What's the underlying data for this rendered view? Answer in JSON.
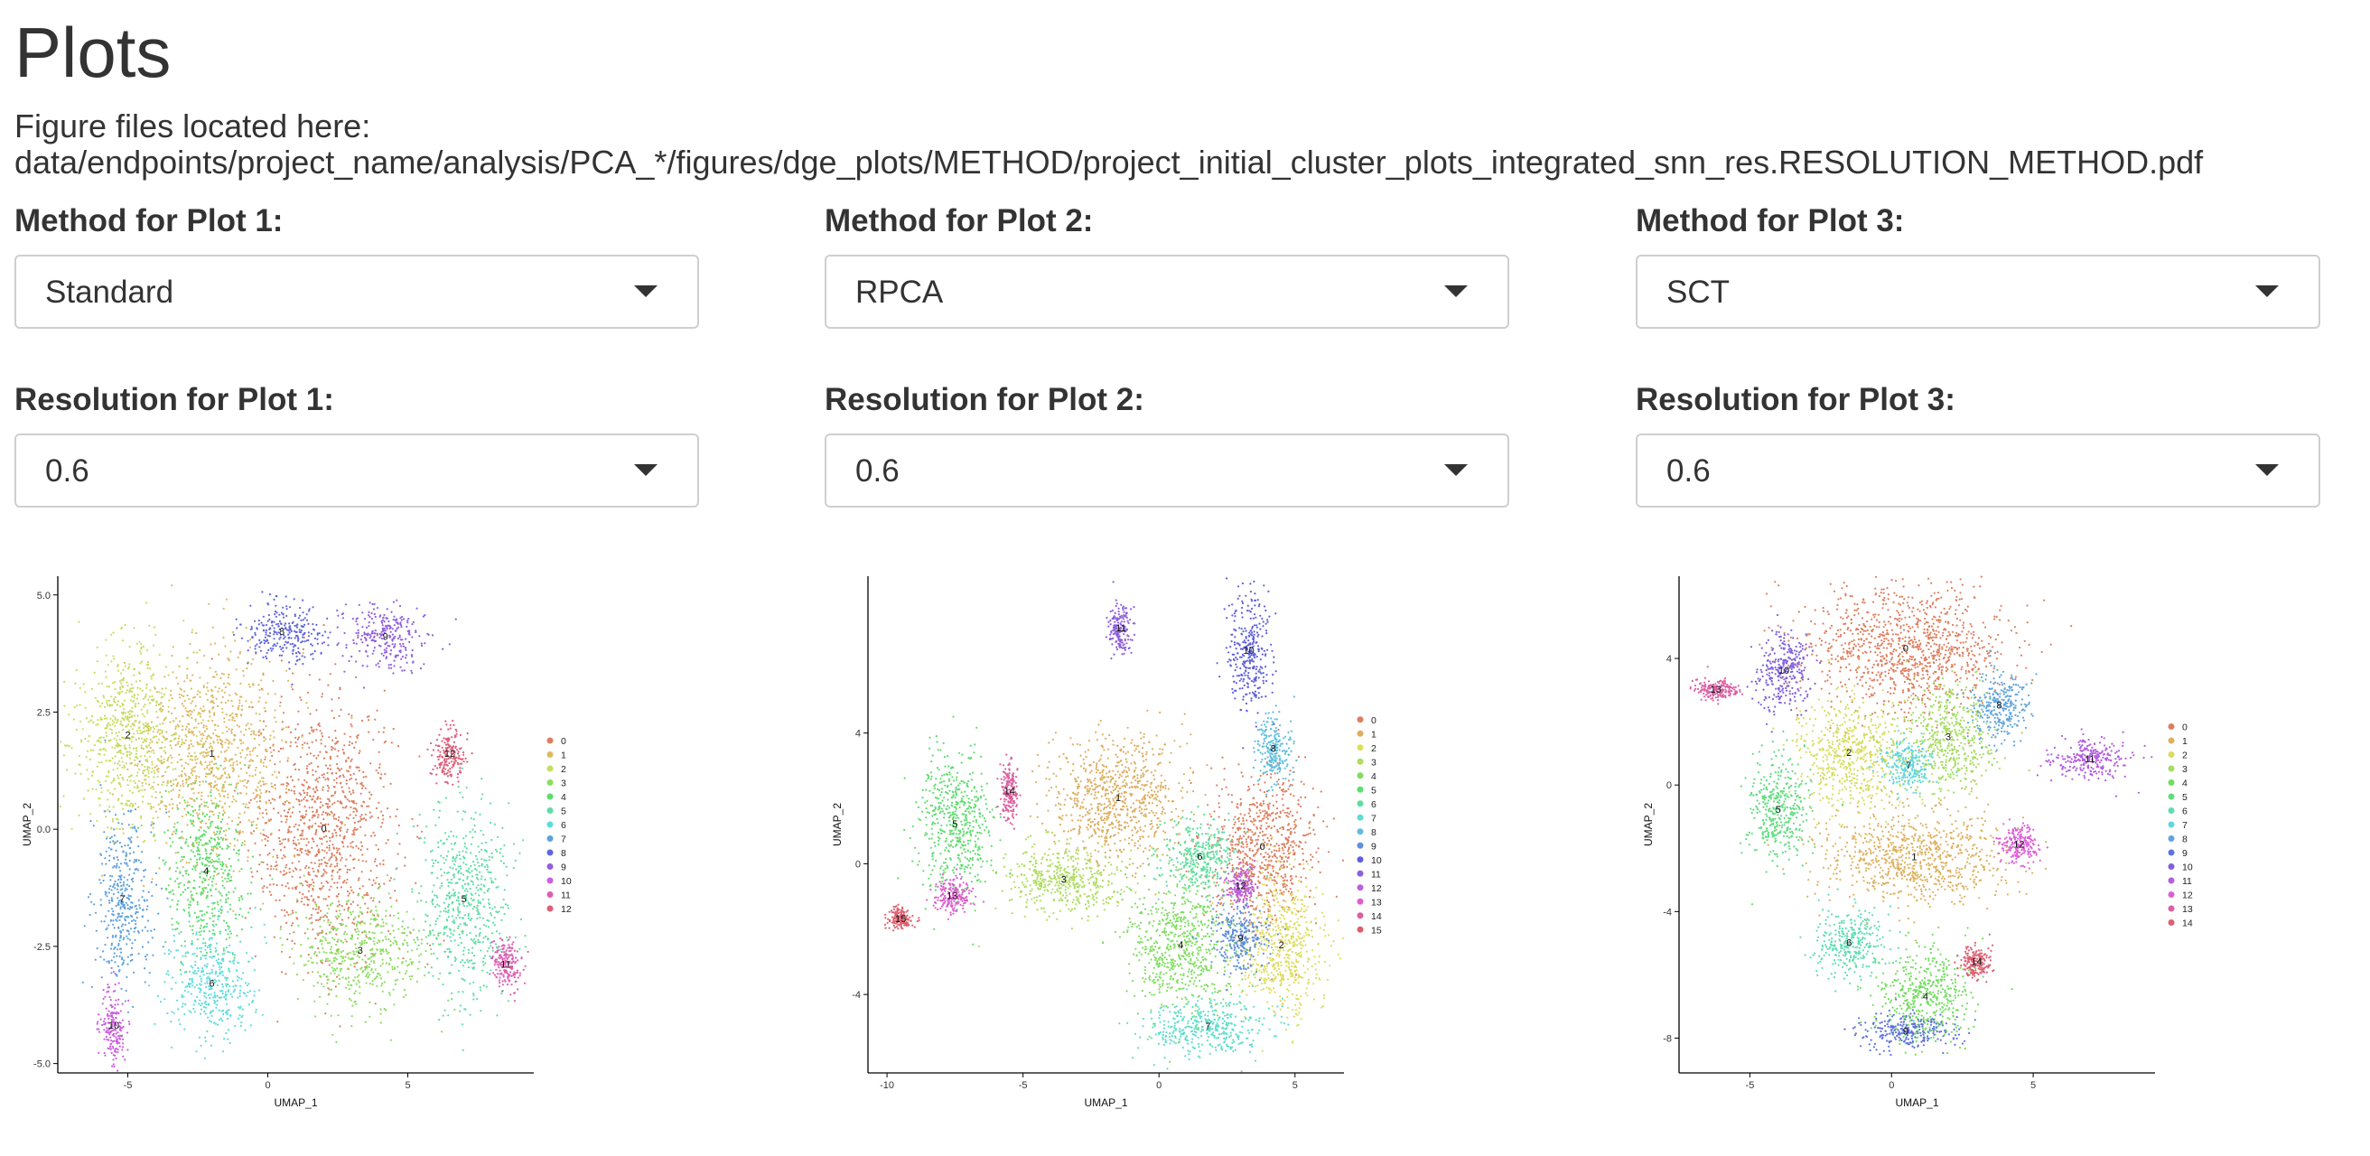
{
  "page": {
    "title": "Plots",
    "files_label": "Figure files located here:",
    "files_path": "data/endpoints/project_name/analysis/PCA_*/figures/dge_plots/METHOD/project_initial_cluster_plots_integrated_snn_res.RESOLUTION_METHOD.pdf"
  },
  "controls": [
    {
      "method_label": "Method for Plot 1:",
      "method_value": "Standard",
      "resolution_label": "Resolution for Plot 1:",
      "resolution_value": "0.6"
    },
    {
      "method_label": "Method for Plot 2:",
      "method_value": "RPCA",
      "resolution_label": "Resolution for Plot 2:",
      "resolution_value": "0.6"
    },
    {
      "method_label": "Method for Plot 3:",
      "method_value": "SCT",
      "resolution_label": "Resolution for Plot 3:",
      "resolution_value": "0.6"
    }
  ],
  "palette": [
    "#f8766d",
    "#e88526",
    "#d39200",
    "#b79f00",
    "#93aa00",
    "#5eb300",
    "#00ba38",
    "#00bf74",
    "#00c19f",
    "#00bfc4",
    "#00b9e3",
    "#00adfa",
    "#619cff",
    "#ae87ff",
    "#db72fb",
    "#f564e3",
    "#ff61c3"
  ],
  "chart_data": [
    {
      "type": "scatter",
      "xlabel": "UMAP_1",
      "ylabel": "UMAP_2",
      "xlim": [
        -7.5,
        9.5
      ],
      "ylim": [
        -5.2,
        5.4
      ],
      "xticks": [
        -5,
        0,
        5
      ],
      "yticks": [
        -5.0,
        -2.5,
        0.0,
        2.5,
        5.0
      ],
      "ytick_labels": [
        "-5.0",
        "-2.5",
        "0.0",
        "2.5",
        "5.0"
      ],
      "legend_position": "right",
      "legend": [
        "0",
        "1",
        "2",
        "3",
        "4",
        "5",
        "6",
        "7",
        "8",
        "9",
        "10",
        "11",
        "12"
      ],
      "clusters": [
        {
          "label": "0",
          "x": 2.0,
          "y": 0.0,
          "rx": 2.3,
          "ry": 2.5
        },
        {
          "label": "1",
          "x": -2.0,
          "y": 1.6,
          "rx": 2.4,
          "ry": 2.0
        },
        {
          "label": "2",
          "x": -5.0,
          "y": 2.0,
          "rx": 1.8,
          "ry": 1.8
        },
        {
          "label": "3",
          "x": 3.3,
          "y": -2.6,
          "rx": 2.2,
          "ry": 1.0
        },
        {
          "label": "4",
          "x": -2.2,
          "y": -0.9,
          "rx": 1.3,
          "ry": 1.6
        },
        {
          "label": "5",
          "x": 7.0,
          "y": -1.5,
          "rx": 1.5,
          "ry": 1.8
        },
        {
          "label": "6",
          "x": -2.0,
          "y": -3.3,
          "rx": 1.4,
          "ry": 1.1
        },
        {
          "label": "7",
          "x": -5.2,
          "y": -1.5,
          "rx": 1.0,
          "ry": 1.6
        },
        {
          "label": "8",
          "x": 0.5,
          "y": 4.2,
          "rx": 1.2,
          "ry": 0.6
        },
        {
          "label": "9",
          "x": 4.2,
          "y": 4.1,
          "rx": 1.4,
          "ry": 0.6
        },
        {
          "label": "10",
          "x": -5.5,
          "y": -4.2,
          "rx": 0.4,
          "ry": 0.7
        },
        {
          "label": "11",
          "x": 8.5,
          "y": -2.9,
          "rx": 0.5,
          "ry": 0.5
        },
        {
          "label": "12",
          "x": 6.5,
          "y": 1.6,
          "rx": 0.5,
          "ry": 0.5
        }
      ]
    },
    {
      "type": "scatter",
      "xlabel": "UMAP_1",
      "ylabel": "UMAP_2",
      "xlim": [
        -10.7,
        6.8
      ],
      "ylim": [
        -6.4,
        8.8
      ],
      "xticks": [
        -10,
        -5,
        0,
        5
      ],
      "yticks": [
        -4,
        0,
        4
      ],
      "ytick_labels": [
        "-4",
        "0",
        "4"
      ],
      "legend_position": "right",
      "legend": [
        "0",
        "1",
        "2",
        "3",
        "4",
        "5",
        "6",
        "7",
        "8",
        "9",
        "10",
        "11",
        "12",
        "13",
        "14",
        "15"
      ],
      "clusters": [
        {
          "label": "0",
          "x": 3.8,
          "y": 0.5,
          "rx": 1.8,
          "ry": 2.0
        },
        {
          "label": "1",
          "x": -1.5,
          "y": 2.0,
          "rx": 2.2,
          "ry": 1.8
        },
        {
          "label": "2",
          "x": 4.5,
          "y": -2.5,
          "rx": 1.4,
          "ry": 2.0
        },
        {
          "label": "3",
          "x": -3.5,
          "y": -0.5,
          "rx": 2.0,
          "ry": 1.0
        },
        {
          "label": "4",
          "x": 0.8,
          "y": -2.5,
          "rx": 1.8,
          "ry": 1.8
        },
        {
          "label": "5",
          "x": -7.5,
          "y": 1.2,
          "rx": 1.2,
          "ry": 2.0
        },
        {
          "label": "6",
          "x": 1.5,
          "y": 0.2,
          "rx": 1.3,
          "ry": 1.0
        },
        {
          "label": "7",
          "x": 1.8,
          "y": -5.0,
          "rx": 2.0,
          "ry": 0.8
        },
        {
          "label": "8",
          "x": 4.2,
          "y": 3.5,
          "rx": 0.6,
          "ry": 1.0
        },
        {
          "label": "9",
          "x": 3.0,
          "y": -2.3,
          "rx": 0.9,
          "ry": 0.9
        },
        {
          "label": "10",
          "x": 3.3,
          "y": 6.5,
          "rx": 0.7,
          "ry": 1.6
        },
        {
          "label": "11",
          "x": -1.4,
          "y": 7.2,
          "rx": 0.4,
          "ry": 0.7
        },
        {
          "label": "12",
          "x": 3.0,
          "y": -0.7,
          "rx": 0.5,
          "ry": 0.5
        },
        {
          "label": "13",
          "x": -7.6,
          "y": -1.0,
          "rx": 0.6,
          "ry": 0.5
        },
        {
          "label": "14",
          "x": -5.5,
          "y": 2.2,
          "rx": 0.3,
          "ry": 0.8
        },
        {
          "label": "15",
          "x": -9.5,
          "y": -1.7,
          "rx": 0.4,
          "ry": 0.3
        }
      ]
    },
    {
      "type": "scatter",
      "xlabel": "UMAP_1",
      "ylabel": "UMAP_2",
      "xlim": [
        -7.5,
        9.3
      ],
      "ylim": [
        -9.1,
        6.6
      ],
      "xticks": [
        -5,
        0,
        5
      ],
      "yticks": [
        -8,
        -4,
        0,
        4
      ],
      "ytick_labels": [
        "-8",
        "-4",
        "0",
        "4"
      ],
      "legend_position": "right",
      "legend": [
        "0",
        "1",
        "2",
        "3",
        "4",
        "5",
        "6",
        "7",
        "8",
        "9",
        "10",
        "11",
        "12",
        "13",
        "14"
      ],
      "clusters": [
        {
          "label": "0",
          "x": 0.5,
          "y": 4.3,
          "rx": 3.2,
          "ry": 1.8
        },
        {
          "label": "1",
          "x": 0.8,
          "y": -2.3,
          "rx": 3.0,
          "ry": 1.4
        },
        {
          "label": "2",
          "x": -1.5,
          "y": 1.0,
          "rx": 1.8,
          "ry": 1.6
        },
        {
          "label": "3",
          "x": 2.0,
          "y": 1.5,
          "rx": 1.6,
          "ry": 1.5
        },
        {
          "label": "4",
          "x": 1.2,
          "y": -6.7,
          "rx": 1.5,
          "ry": 1.4
        },
        {
          "label": "5",
          "x": -4.0,
          "y": -0.8,
          "rx": 1.0,
          "ry": 1.5
        },
        {
          "label": "6",
          "x": -1.5,
          "y": -5.0,
          "rx": 1.1,
          "ry": 1.0
        },
        {
          "label": "7",
          "x": 0.6,
          "y": 0.6,
          "rx": 0.8,
          "ry": 0.7
        },
        {
          "label": "8",
          "x": 3.8,
          "y": 2.5,
          "rx": 0.9,
          "ry": 1.0
        },
        {
          "label": "9",
          "x": 0.5,
          "y": -7.8,
          "rx": 1.5,
          "ry": 0.5
        },
        {
          "label": "10",
          "x": -3.8,
          "y": 3.6,
          "rx": 0.8,
          "ry": 1.2
        },
        {
          "label": "11",
          "x": 7.0,
          "y": 0.8,
          "rx": 1.3,
          "ry": 0.6
        },
        {
          "label": "12",
          "x": 4.5,
          "y": -1.9,
          "rx": 0.6,
          "ry": 0.6
        },
        {
          "label": "13",
          "x": -6.2,
          "y": 3.0,
          "rx": 0.8,
          "ry": 0.3
        },
        {
          "label": "14",
          "x": 3.0,
          "y": -5.6,
          "rx": 0.5,
          "ry": 0.5
        }
      ]
    }
  ]
}
